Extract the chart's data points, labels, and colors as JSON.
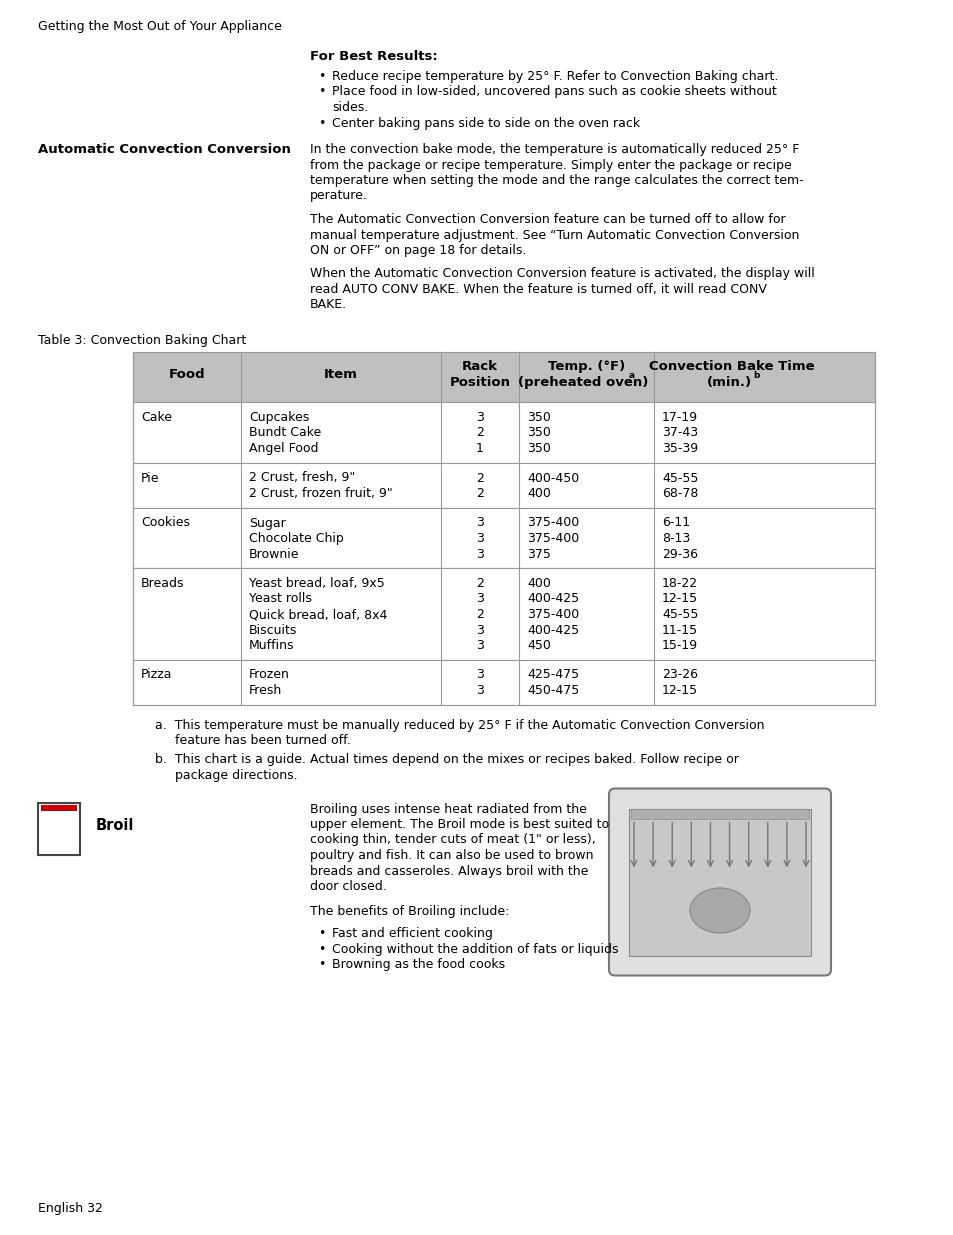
{
  "page_bg": "#ffffff",
  "top_label": "Getting the Most Out of Your Appliance",
  "best_results_title": "For Best Results:",
  "best_results_bullets": [
    "Reduce recipe temperature by 25° F. Refer to Convection Baking chart.",
    "Place food in low-sided, uncovered pans such as cookie sheets without",
    "sides.",
    "Center baking pans side to side on the oven rack"
  ],
  "bullet_line2_indent": true,
  "auto_conv_label": "Automatic Convection Conversion",
  "auto_conv_para1_lines": [
    "In the convection bake mode, the temperature is automatically reduced 25° F",
    "from the package or recipe temperature. Simply enter the package or recipe",
    "temperature when setting the mode and the range calculates the correct tem-",
    "perature."
  ],
  "auto_conv_para2_lines": [
    "The Automatic Convection Conversion feature can be turned off to allow for",
    "manual temperature adjustment. See “Turn Automatic Convection Conversion",
    "ON or OFF” on page 18 for details."
  ],
  "auto_conv_para3_lines": [
    "When the Automatic Convection Conversion feature is activated, the display will",
    "read AUTO CONV BAKE. When the feature is turned off, it will read CONV",
    "BAKE."
  ],
  "table_title": "Table 3: Convection Baking Chart",
  "table_rows": [
    [
      "Cake",
      "Cupcakes\nBundt Cake\nAngel Food",
      "3\n2\n1",
      "350\n350\n350",
      "17-19\n37-43\n35-39"
    ],
    [
      "Pie",
      "2 Crust, fresh, 9\"\n2 Crust, frozen fruit, 9\"",
      "2\n2",
      "400-450\n400",
      "45-55\n68-78"
    ],
    [
      "Cookies",
      "Sugar\nChocolate Chip\nBrownie",
      "3\n3\n3",
      "375-400\n375-400\n375",
      "6-11\n8-13\n29-36"
    ],
    [
      "Breads",
      "Yeast bread, loaf, 9x5\nYeast rolls\nQuick bread, loaf, 8x4\nBiscuits\nMuffins",
      "2\n3\n2\n3\n3",
      "400\n400-425\n375-400\n400-425\n450",
      "18-22\n12-15\n45-55\n11-15\n15-19"
    ],
    [
      "Pizza",
      "Frozen\nFresh",
      "3\n3",
      "425-475\n450-475",
      "23-26\n12-15"
    ]
  ],
  "footnote_a_line1": "a.  This temperature must be manually reduced by 25° F if the Automatic Convection Conversion",
  "footnote_a_line2": "     feature has been turned off.",
  "footnote_b_line1": "b.  This chart is a guide. Actual times depend on the mixes or recipes baked. Follow recipe or",
  "footnote_b_line2": "     package directions.",
  "broil_label": "Broil",
  "broil_para1_lines": [
    "Broiling uses intense heat radiated from the",
    "upper element. The Broil mode is best suited to",
    "cooking thin, tender cuts of meat (1\" or less),",
    "poultry and fish. It can also be used to brown",
    "breads and casseroles. Always broil with the",
    "door closed."
  ],
  "broil_para2": "The benefits of Broiling include:",
  "broil_bullets": [
    "Fast and efficient cooking",
    "Cooking without the addition of fats or liquids",
    "Browning as the food cooks"
  ],
  "footer": "English 32",
  "header_bg": "#c0c0c0",
  "table_border_color": "#999999",
  "font_size": 9.5
}
